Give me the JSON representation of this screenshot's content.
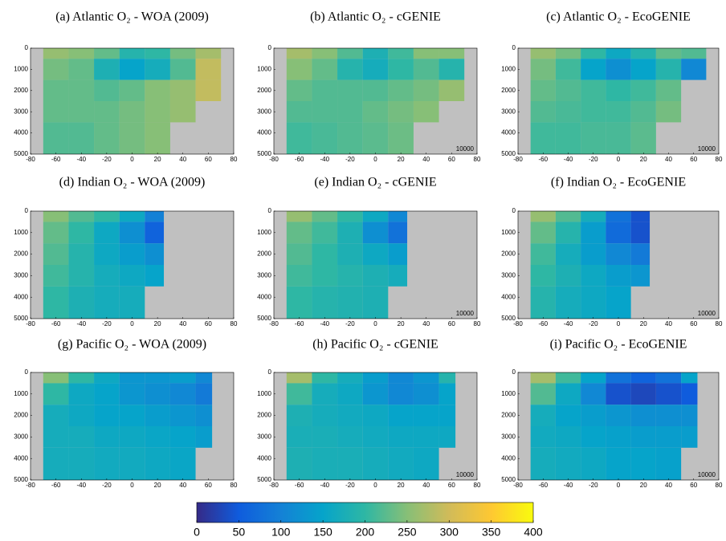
{
  "chart_data": [
    {
      "type": "heatmap",
      "title": "(a) Atlantic O₂ - WOA (2009)",
      "x_bins": [
        -70,
        -50,
        -30,
        -10,
        10,
        30,
        50,
        70
      ],
      "y_bins": [
        0,
        500,
        1500,
        2500,
        3500,
        5000
      ],
      "values": [
        [
          260,
          250,
          230,
          190,
          200,
          240,
          270
        ],
        [
          240,
          230,
          180,
          150,
          170,
          220,
          290
        ],
        [
          230,
          230,
          220,
          230,
          250,
          260,
          290
        ],
        [
          230,
          230,
          230,
          240,
          250,
          260,
          null
        ],
        [
          220,
          220,
          230,
          240,
          250,
          null,
          null
        ]
      ],
      "xlim": [
        -80,
        80
      ],
      "ylim": [
        0,
        5000
      ],
      "y_inverted": true,
      "xticks": [
        -80,
        -60,
        -40,
        -20,
        0,
        20,
        40,
        60,
        80
      ],
      "yticks": [
        0,
        1000,
        2000,
        3000,
        4000,
        5000
      ]
    },
    {
      "type": "heatmap",
      "title": "(b) Atlantic O₂ - cGENIE",
      "x_bins": [
        -70,
        -50,
        -30,
        -10,
        10,
        30,
        50,
        70
      ],
      "y_bins": [
        0,
        500,
        1500,
        2500,
        3500,
        5000
      ],
      "values": [
        [
          270,
          250,
          220,
          180,
          210,
          250,
          250
        ],
        [
          250,
          230,
          190,
          170,
          200,
          220,
          190
        ],
        [
          230,
          220,
          220,
          220,
          230,
          240,
          260
        ],
        [
          220,
          220,
          220,
          230,
          240,
          250,
          null
        ],
        [
          210,
          215,
          220,
          225,
          235,
          null,
          null
        ]
      ],
      "xlim": [
        -80,
        80
      ],
      "ylim": [
        0,
        5000
      ],
      "y_inverted": true,
      "xticks": [
        -80,
        -60,
        -40,
        -20,
        0,
        20,
        40,
        60,
        80
      ],
      "yticks": [
        0,
        1000,
        2000,
        3000,
        4000,
        5000
      ],
      "annotation": "10000"
    },
    {
      "type": "heatmap",
      "title": "(c) Atlantic O₂ - EcoGENIE",
      "x_bins": [
        -70,
        -50,
        -30,
        -10,
        10,
        30,
        50,
        70
      ],
      "y_bins": [
        0,
        500,
        1500,
        2500,
        3500,
        5000
      ],
      "values": [
        [
          260,
          240,
          200,
          160,
          190,
          230,
          220
        ],
        [
          240,
          210,
          150,
          120,
          150,
          190,
          110
        ],
        [
          230,
          220,
          210,
          200,
          210,
          230,
          null
        ],
        [
          220,
          215,
          210,
          210,
          220,
          240,
          null
        ],
        [
          210,
          210,
          215,
          215,
          225,
          null,
          null
        ]
      ],
      "xlim": [
        -80,
        80
      ],
      "ylim": [
        0,
        5000
      ],
      "y_inverted": true,
      "xticks": [
        -80,
        -60,
        -40,
        -20,
        0,
        20,
        40,
        60,
        80
      ],
      "yticks": [
        0,
        1000,
        2000,
        3000,
        4000,
        5000
      ],
      "annotation": "10000"
    },
    {
      "type": "heatmap",
      "title": "(d) Indian O₂ - WOA (2009)",
      "x_bins": [
        -70,
        -50,
        -30,
        -10,
        10,
        25
      ],
      "y_bins": [
        0,
        500,
        1500,
        2500,
        3500,
        5000
      ],
      "values": [
        [
          250,
          220,
          200,
          160,
          100
        ],
        [
          230,
          200,
          160,
          120,
          60
        ],
        [
          220,
          190,
          160,
          140,
          120
        ],
        [
          210,
          190,
          170,
          160,
          150
        ],
        [
          200,
          180,
          170,
          170,
          null
        ]
      ],
      "xlim": [
        -80,
        80
      ],
      "ylim": [
        0,
        5000
      ],
      "y_inverted": true,
      "xticks": [
        -80,
        -60,
        -40,
        -20,
        0,
        20,
        40,
        60,
        80
      ],
      "yticks": [
        0,
        1000,
        2000,
        3000,
        4000,
        5000
      ]
    },
    {
      "type": "heatmap",
      "title": "(e) Indian O₂ - cGENIE",
      "x_bins": [
        -70,
        -50,
        -30,
        -10,
        10,
        25
      ],
      "y_bins": [
        0,
        500,
        1500,
        2500,
        3500,
        5000
      ],
      "values": [
        [
          260,
          230,
          200,
          160,
          110
        ],
        [
          230,
          210,
          180,
          120,
          80
        ],
        [
          220,
          200,
          180,
          160,
          140
        ],
        [
          210,
          200,
          190,
          180,
          170
        ],
        [
          200,
          190,
          185,
          180,
          null
        ]
      ],
      "xlim": [
        -80,
        80
      ],
      "ylim": [
        0,
        5000
      ],
      "y_inverted": true,
      "xticks": [
        -80,
        -60,
        -40,
        -20,
        0,
        20,
        40,
        60,
        80
      ],
      "yticks": [
        0,
        1000,
        2000,
        3000,
        4000,
        5000
      ],
      "annotation": "10000"
    },
    {
      "type": "heatmap",
      "title": "(f) Indian O₂ - EcoGENIE",
      "x_bins": [
        -70,
        -50,
        -30,
        -10,
        10,
        25
      ],
      "y_bins": [
        0,
        500,
        1500,
        2500,
        3500,
        5000
      ],
      "values": [
        [
          260,
          220,
          170,
          80,
          40
        ],
        [
          230,
          190,
          140,
          70,
          40
        ],
        [
          210,
          170,
          140,
          110,
          90
        ],
        [
          200,
          180,
          160,
          140,
          130
        ],
        [
          190,
          170,
          160,
          150,
          null
        ]
      ],
      "xlim": [
        -80,
        80
      ],
      "ylim": [
        0,
        5000
      ],
      "y_inverted": true,
      "xticks": [
        -80,
        -60,
        -40,
        -20,
        0,
        20,
        40,
        60,
        80
      ],
      "yticks": [
        0,
        1000,
        2000,
        3000,
        4000,
        5000
      ],
      "annotation": "10000"
    },
    {
      "type": "heatmap",
      "title": "(g) Pacific O₂ - WOA (2009)",
      "x_bins": [
        -70,
        -50,
        -30,
        -10,
        10,
        30,
        50,
        63
      ],
      "y_bins": [
        0,
        500,
        1500,
        2500,
        3500,
        5000
      ],
      "values": [
        [
          250,
          200,
          160,
          130,
          130,
          140,
          110
        ],
        [
          200,
          160,
          150,
          130,
          120,
          110,
          90
        ],
        [
          170,
          160,
          150,
          150,
          140,
          130,
          120
        ],
        [
          170,
          170,
          160,
          160,
          155,
          150,
          140
        ],
        [
          170,
          170,
          165,
          165,
          160,
          155,
          null
        ]
      ],
      "xlim": [
        -80,
        80
      ],
      "ylim": [
        0,
        5000
      ],
      "y_inverted": true,
      "xticks": [
        -80,
        -60,
        -40,
        -20,
        0,
        20,
        40,
        60,
        80
      ],
      "yticks": [
        0,
        1000,
        2000,
        3000,
        4000,
        5000
      ]
    },
    {
      "type": "heatmap",
      "title": "(h) Pacific O₂ - cGENIE",
      "x_bins": [
        -70,
        -50,
        -30,
        -10,
        10,
        30,
        50,
        63
      ],
      "y_bins": [
        0,
        500,
        1500,
        2500,
        3500,
        5000
      ],
      "values": [
        [
          270,
          200,
          170,
          140,
          110,
          130,
          190
        ],
        [
          210,
          170,
          160,
          130,
          110,
          120,
          150
        ],
        [
          180,
          170,
          165,
          160,
          150,
          150,
          150
        ],
        [
          175,
          175,
          170,
          165,
          160,
          160,
          160
        ],
        [
          180,
          175,
          175,
          170,
          165,
          160,
          null
        ]
      ],
      "xlim": [
        -80,
        80
      ],
      "ylim": [
        0,
        5000
      ],
      "y_inverted": true,
      "xticks": [
        -80,
        -60,
        -40,
        -20,
        0,
        20,
        40,
        60,
        80
      ],
      "yticks": [
        0,
        1000,
        2000,
        3000,
        4000,
        5000
      ],
      "annotation": "10000"
    },
    {
      "type": "heatmap",
      "title": "(i) Pacific O₂ - EcoGENIE",
      "x_bins": [
        -70,
        -50,
        -30,
        -10,
        10,
        30,
        50,
        63
      ],
      "y_bins": [
        0,
        500,
        1500,
        2500,
        3500,
        5000
      ],
      "values": [
        [
          270,
          210,
          150,
          80,
          60,
          80,
          150
        ],
        [
          220,
          160,
          110,
          40,
          30,
          40,
          50
        ],
        [
          170,
          150,
          140,
          130,
          120,
          120,
          120
        ],
        [
          165,
          160,
          150,
          145,
          140,
          140,
          140
        ],
        [
          170,
          165,
          160,
          150,
          150,
          145,
          null
        ]
      ],
      "xlim": [
        -80,
        80
      ],
      "ylim": [
        0,
        5000
      ],
      "y_inverted": true,
      "xticks": [
        -80,
        -60,
        -40,
        -20,
        0,
        20,
        40,
        60,
        80
      ],
      "yticks": [
        0,
        1000,
        2000,
        3000,
        4000,
        5000
      ],
      "annotation": "10000"
    }
  ],
  "land_color": "#c0c0c0",
  "colorbar": {
    "lim": [
      0,
      400
    ],
    "ticks": [
      0,
      50,
      100,
      150,
      200,
      250,
      300,
      350,
      400
    ],
    "colormap": [
      "#352a87",
      "#0f5cdd",
      "#1481d6",
      "#06a4ca",
      "#2eb7a4",
      "#87bf77",
      "#d1bb59",
      "#fec832",
      "#f9fb0e"
    ]
  }
}
